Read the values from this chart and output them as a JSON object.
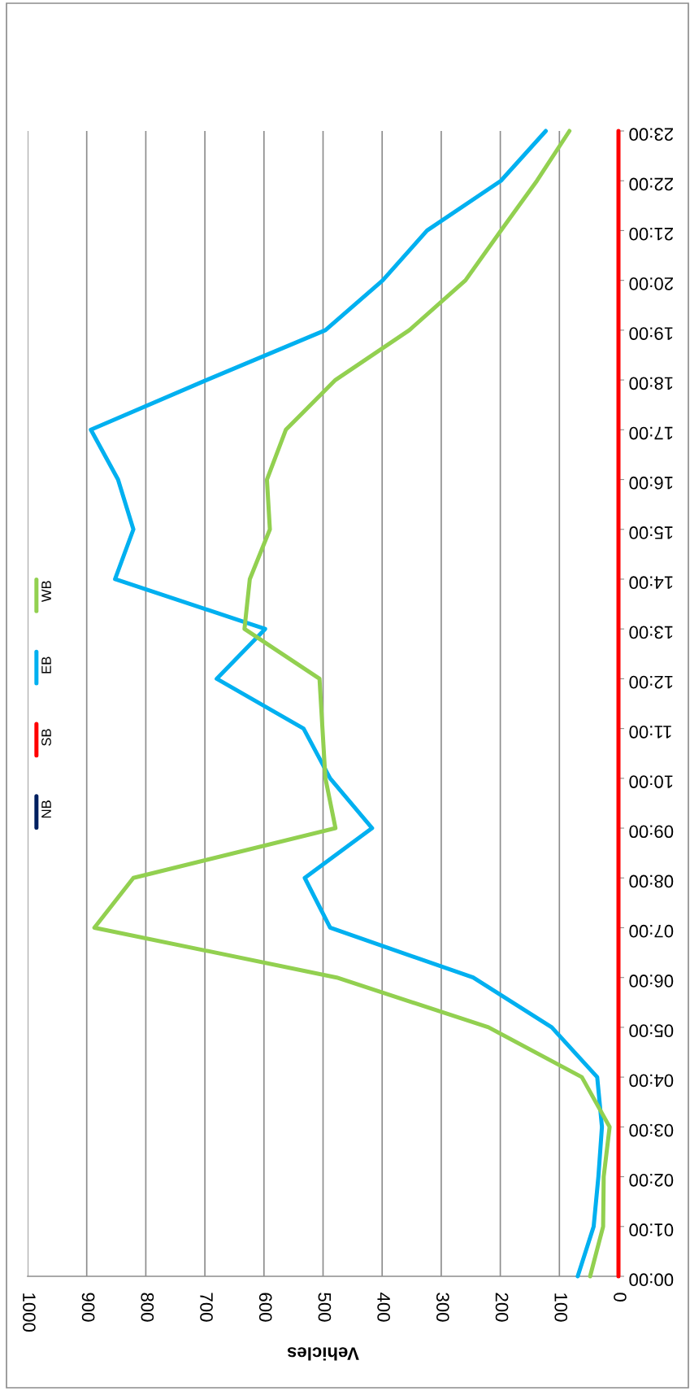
{
  "chart_data": {
    "type": "line",
    "orientation": "horizontal",
    "categories": [
      "23:00",
      "22:00",
      "21:00",
      "20:00",
      "19:00",
      "18:00",
      "17:00",
      "16:00",
      "15:00",
      "14:00",
      "13:00",
      "12:00",
      "11:00",
      "10:00",
      "09:00",
      "08:00",
      "07:00",
      "06:00",
      "05:00",
      "04:00",
      "03:00",
      "02:00",
      "01:00",
      "00:00"
    ],
    "series": [
      {
        "name": "NB",
        "color": "#002060",
        "values": [
          null,
          null,
          null,
          null,
          null,
          null,
          null,
          null,
          null,
          null,
          null,
          null,
          null,
          null,
          null,
          null,
          null,
          null,
          null,
          null,
          null,
          null,
          null,
          null
        ]
      },
      {
        "name": "SB",
        "color": "#ff0000",
        "values": [
          0,
          0,
          0,
          0,
          0,
          0,
          0,
          0,
          0,
          0,
          0,
          0,
          0,
          0,
          0,
          0,
          0,
          0,
          0,
          0,
          0,
          0,
          0,
          0
        ]
      },
      {
        "name": "EB",
        "color": "#00b0f0",
        "values": [
          123,
          199,
          324,
          399,
          496,
          697,
          893,
          847,
          821,
          852,
          598,
          680,
          533,
          488,
          417,
          531,
          488,
          246,
          113,
          36,
          28,
          34,
          42,
          69
        ]
      },
      {
        "name": "WB",
        "color": "#92d050",
        "values": [
          83,
          138,
          199,
          259,
          354,
          479,
          563,
          595,
          590,
          624,
          633,
          506,
          501,
          496,
          479,
          821,
          887,
          477,
          220,
          62,
          15,
          25,
          26,
          48
        ]
      }
    ],
    "xlabel": "Vehicles",
    "xlim": [
      1000,
      0
    ],
    "xticks": [
      1000,
      900,
      800,
      700,
      600,
      500,
      400,
      300,
      200,
      100,
      0
    ],
    "grid": "x",
    "legend": "left",
    "marker": "none",
    "line_style": "solid"
  }
}
